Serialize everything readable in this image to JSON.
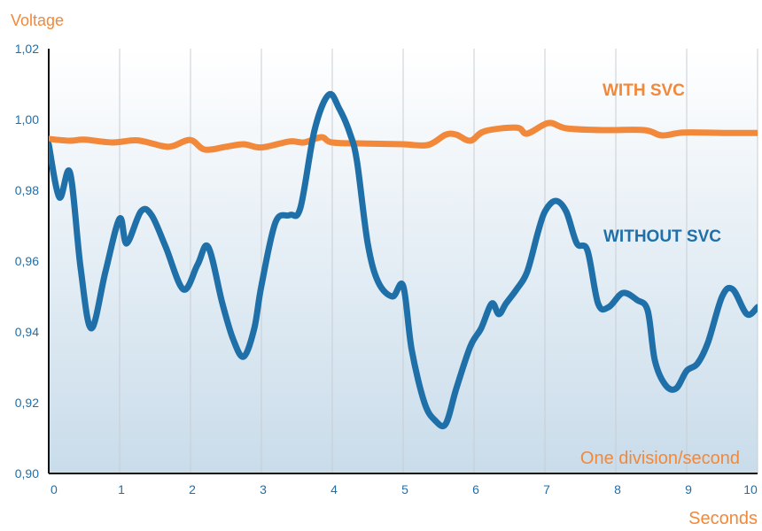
{
  "colors": {
    "with_svc": "#f2883a",
    "without_svc": "#1f6fa8",
    "axis_text_orange": "#f2883a",
    "axis_text_blue": "#1f6fa8",
    "grid": "#c9cdd2",
    "bg_top": "#ffffff",
    "bg_bottom": "#c9dcea"
  },
  "chart_data": {
    "type": "line",
    "ylabel": "Voltage",
    "xlabel": "Seconds",
    "annotation": "One division/second",
    "xlim": [
      0,
      10
    ],
    "ylim": [
      0.9,
      1.02
    ],
    "x_ticks": [
      "0",
      "1",
      "2",
      "3",
      "4",
      "5",
      "6",
      "7",
      "8",
      "9",
      "10"
    ],
    "y_ticks": [
      "0,90",
      "0,92",
      "0,94",
      "0,96",
      "0,98",
      "1,00",
      "1,02"
    ],
    "grid": "vertical",
    "series": [
      {
        "name": "WITH SVC",
        "x": [
          0,
          0.3,
          0.5,
          0.9,
          1.25,
          1.6,
          1.75,
          2.0,
          2.2,
          2.5,
          2.75,
          3.0,
          3.4,
          3.6,
          3.85,
          4.0,
          4.5,
          5.0,
          5.35,
          5.6,
          5.75,
          5.95,
          6.15,
          6.6,
          6.75,
          7.05,
          7.3,
          7.8,
          8.4,
          8.65,
          8.95,
          9.5,
          10.0
        ],
        "values": [
          0.9945,
          0.994,
          0.9943,
          0.9935,
          0.9941,
          0.9925,
          0.9925,
          0.9942,
          0.9915,
          0.9923,
          0.993,
          0.9921,
          0.9938,
          0.9935,
          0.995,
          0.9935,
          0.9932,
          0.993,
          0.9928,
          0.9957,
          0.9957,
          0.994,
          0.9967,
          0.9977,
          0.996,
          0.999,
          0.9975,
          0.997,
          0.997,
          0.9955,
          0.9963,
          0.9962,
          0.9962
        ]
      },
      {
        "name": "WITHOUT SVC",
        "x": [
          0,
          0.15,
          0.3,
          0.45,
          0.6,
          0.8,
          1.0,
          1.1,
          1.3,
          1.45,
          1.65,
          1.9,
          2.1,
          2.25,
          2.45,
          2.6,
          2.75,
          2.9,
          3.0,
          3.2,
          3.4,
          3.55,
          3.75,
          3.95,
          4.1,
          4.25,
          4.35,
          4.5,
          4.65,
          4.85,
          5.0,
          5.12,
          5.3,
          5.45,
          5.6,
          5.75,
          5.95,
          6.1,
          6.25,
          6.35,
          6.45,
          6.6,
          6.75,
          6.9,
          7.0,
          7.15,
          7.3,
          7.45,
          7.6,
          7.75,
          7.9,
          8.1,
          8.3,
          8.45,
          8.55,
          8.7,
          8.85,
          9.0,
          9.15,
          9.3,
          9.5,
          9.65,
          9.85,
          10.0
        ],
        "values": [
          0.993,
          0.978,
          0.985,
          0.958,
          0.941,
          0.957,
          0.972,
          0.965,
          0.974,
          0.973,
          0.964,
          0.952,
          0.959,
          0.964,
          0.948,
          0.938,
          0.933,
          0.941,
          0.953,
          0.971,
          0.973,
          0.975,
          0.997,
          1.007,
          1.003,
          0.996,
          0.988,
          0.965,
          0.954,
          0.95,
          0.953,
          0.935,
          0.92,
          0.915,
          0.914,
          0.924,
          0.936,
          0.941,
          0.948,
          0.945,
          0.948,
          0.952,
          0.957,
          0.968,
          0.974,
          0.977,
          0.974,
          0.965,
          0.963,
          0.948,
          0.947,
          0.951,
          0.949,
          0.946,
          0.932,
          0.925,
          0.924,
          0.929,
          0.931,
          0.937,
          0.95,
          0.952,
          0.945,
          0.947
        ]
      }
    ]
  }
}
